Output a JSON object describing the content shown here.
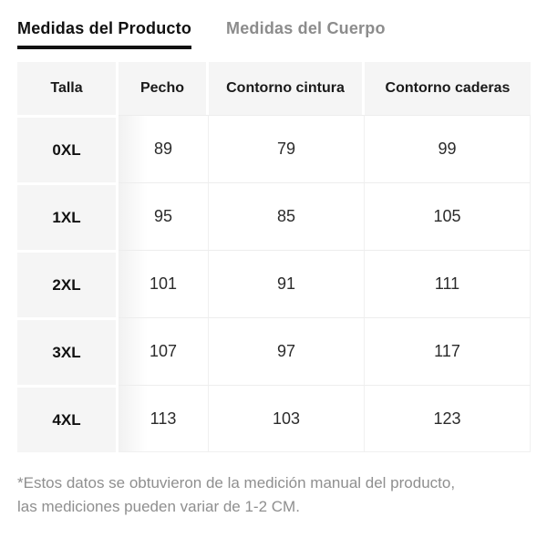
{
  "tabs": [
    {
      "label": "Medidas del Producto",
      "active": true
    },
    {
      "label": "Medidas del Cuerpo",
      "active": false
    }
  ],
  "table": {
    "columns": [
      "Talla",
      "Pecho",
      "Contorno cintura",
      "Contorno caderas"
    ],
    "rows": [
      {
        "size": "0XL",
        "values": [
          "89",
          "79",
          "99"
        ]
      },
      {
        "size": "1XL",
        "values": [
          "95",
          "85",
          "105"
        ]
      },
      {
        "size": "2XL",
        "values": [
          "101",
          "91",
          "111"
        ]
      },
      {
        "size": "3XL",
        "values": [
          "107",
          "97",
          "117"
        ]
      },
      {
        "size": "4XL",
        "values": [
          "113",
          "103",
          "123"
        ]
      }
    ]
  },
  "footnote": {
    "lines": [
      "*Estos datos se obtuvieron de la medición manual del producto,",
      "las mediciones pueden variar de 1-2 CM."
    ]
  },
  "colors": {
    "active_tab": "#111111",
    "inactive_tab": "#8c8c8c",
    "tab_underline": "#111111",
    "header_row_bg": "#f5f5f5",
    "sticky_column_bg": "#f5f5f5",
    "cell_border": "#ededed",
    "footnote_text": "#8f8f8f",
    "background": "#ffffff"
  }
}
